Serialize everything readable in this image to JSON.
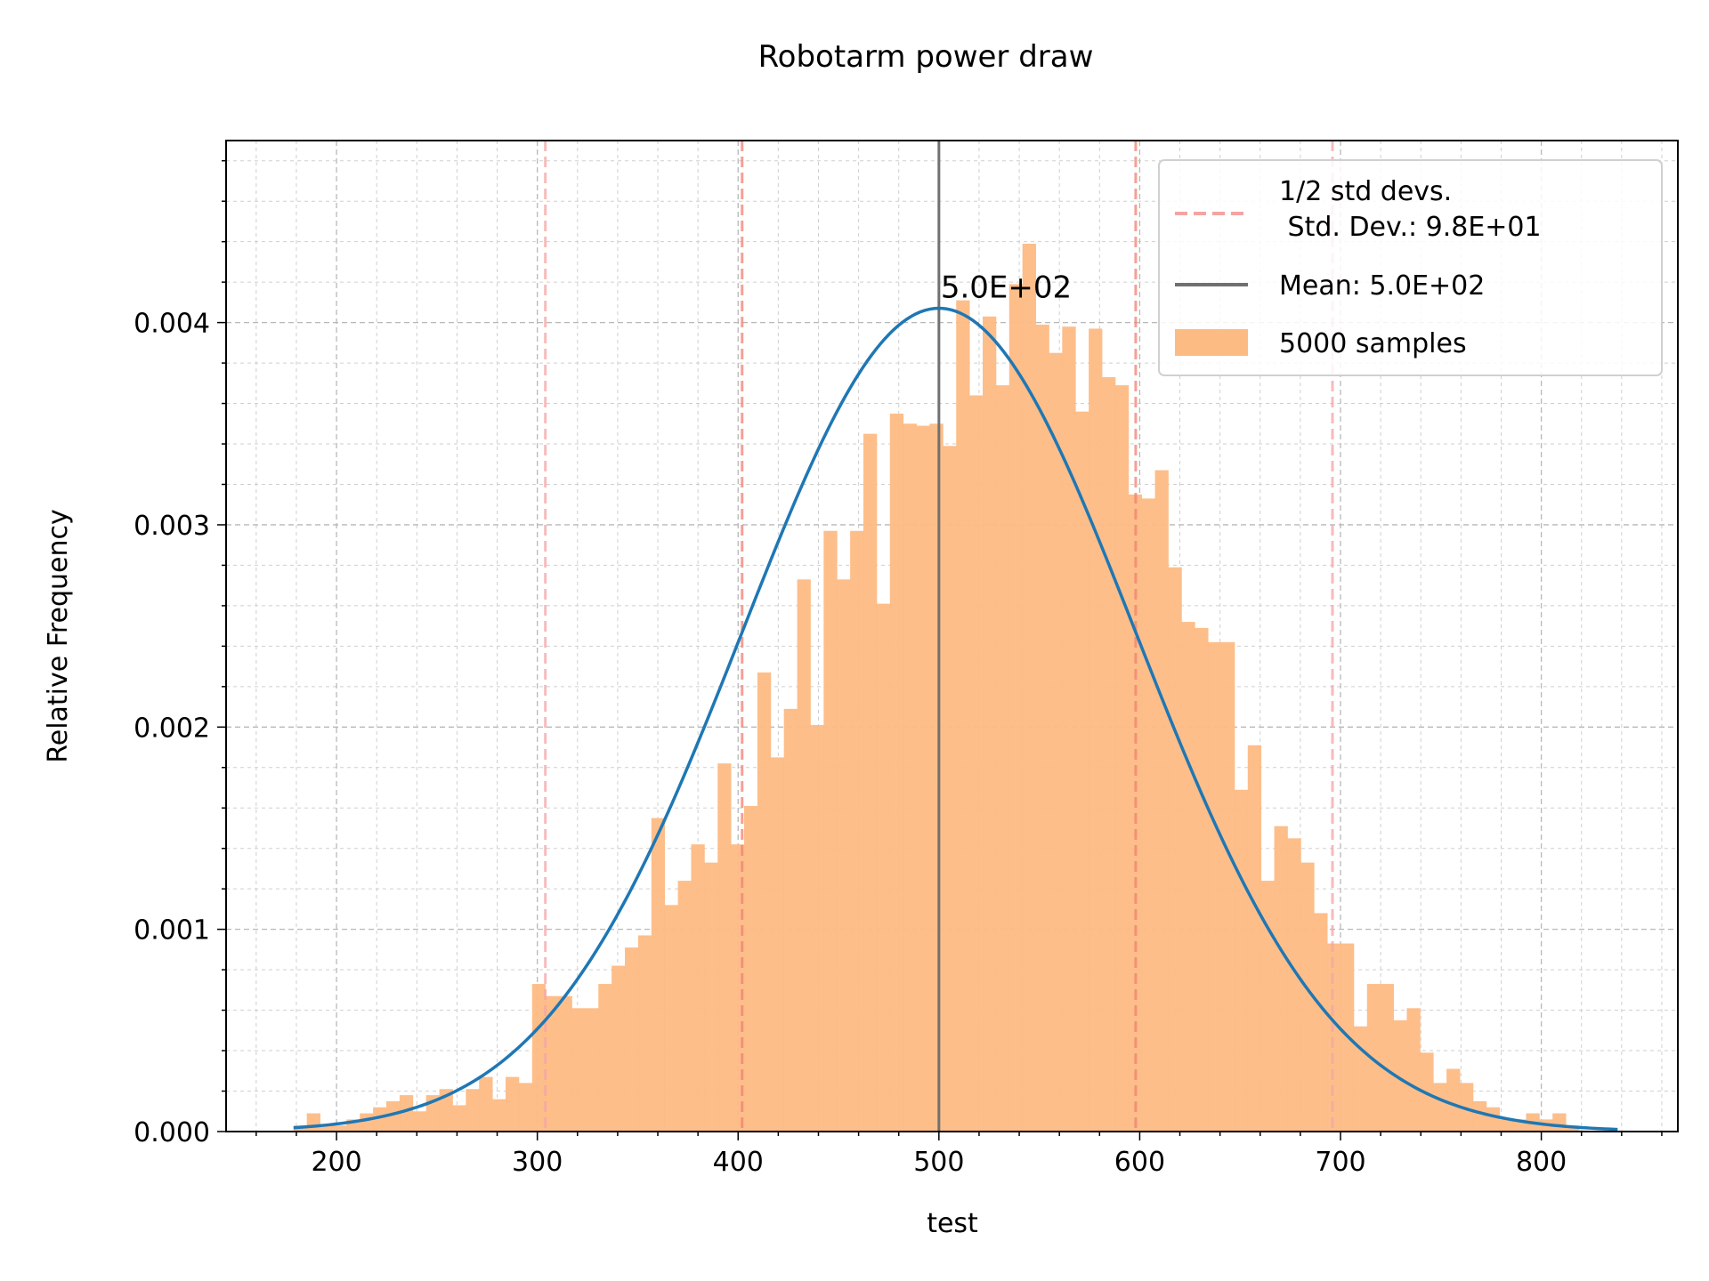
{
  "chart_data": {
    "type": "bar",
    "title": "Robotarm  power draw",
    "xlabel": "test",
    "ylabel": "Relative Frequency",
    "xlim": [
      145,
      868
    ],
    "ylim": [
      0,
      0.0049
    ],
    "xticks": [
      200,
      300,
      400,
      500,
      600,
      700,
      800
    ],
    "yticks": [
      0.0,
      0.001,
      0.002,
      0.003,
      0.004
    ],
    "ytick_labels": [
      "0.000",
      "0.001",
      "0.002",
      "0.003",
      "0.004"
    ],
    "grid": true,
    "legend_position": "upper right",
    "histogram": {
      "name": "5000 samples",
      "color": "#fdbb84",
      "bin_start": 178.6,
      "bin_width": 6.6,
      "values": [
        3e-05,
        9e-05,
        3e-05,
        3e-05,
        6e-05,
        9e-05,
        0.00012,
        0.00015,
        0.00018,
        0.0001,
        0.00018,
        0.00021,
        0.00013,
        0.00021,
        0.00027,
        0.00016,
        0.00027,
        0.00024,
        0.00073,
        0.00067,
        0.00067,
        0.00061,
        0.00061,
        0.00073,
        0.00082,
        0.00091,
        0.00097,
        0.00155,
        0.00112,
        0.00124,
        0.00142,
        0.00133,
        0.00182,
        0.00142,
        0.00161,
        0.00227,
        0.00185,
        0.00209,
        0.00273,
        0.00201,
        0.00297,
        0.00273,
        0.00297,
        0.00345,
        0.00261,
        0.00355,
        0.0035,
        0.00349,
        0.0035,
        0.00339,
        0.00411,
        0.00364,
        0.00403,
        0.00369,
        0.00419,
        0.00439,
        0.00399,
        0.00385,
        0.00398,
        0.00356,
        0.00397,
        0.00373,
        0.00369,
        0.00315,
        0.00313,
        0.00327,
        0.00279,
        0.00252,
        0.00249,
        0.00242,
        0.00242,
        0.00169,
        0.00191,
        0.00124,
        0.00151,
        0.00145,
        0.00133,
        0.00108,
        0.00093,
        0.00093,
        0.00052,
        0.00073,
        0.00073,
        0.00055,
        0.00061,
        0.00039,
        0.00024,
        0.00031,
        0.00024,
        0.00015,
        0.00012,
        6e-05,
        6e-05,
        9e-05,
        6e-05,
        9e-05,
        3e-05
      ]
    },
    "normal_curve": {
      "color": "#1f77b4",
      "mean": 500,
      "std": 98,
      "x_range": [
        178.6,
        838
      ]
    },
    "mean_line": {
      "label": "Mean: 5.0E+02",
      "x": 500,
      "color": "#707070",
      "annotation": "5.0E+02"
    },
    "std_lines": {
      "label": "1/2 std devs.\n Std. Dev.: 9.8E+01",
      "label_line1": "1/2 std devs.",
      "label_line2": " Std. Dev.: 9.8E+01",
      "one_std_x": [
        402,
        598
      ],
      "two_std_x": [
        304,
        696
      ],
      "one_std_color": "#f08070",
      "two_std_color": "#f4a4a4"
    },
    "legend": [
      {
        "label_line1": "1/2 std devs.",
        "label_line2": " Std. Dev.: 9.8E+01",
        "style": "dashed-line",
        "color": "#f4a4a4"
      },
      {
        "label": "Mean: 5.0E+02",
        "style": "line",
        "color": "#707070"
      },
      {
        "label": "5000 samples",
        "style": "patch",
        "color": "#fdbb84"
      }
    ]
  }
}
